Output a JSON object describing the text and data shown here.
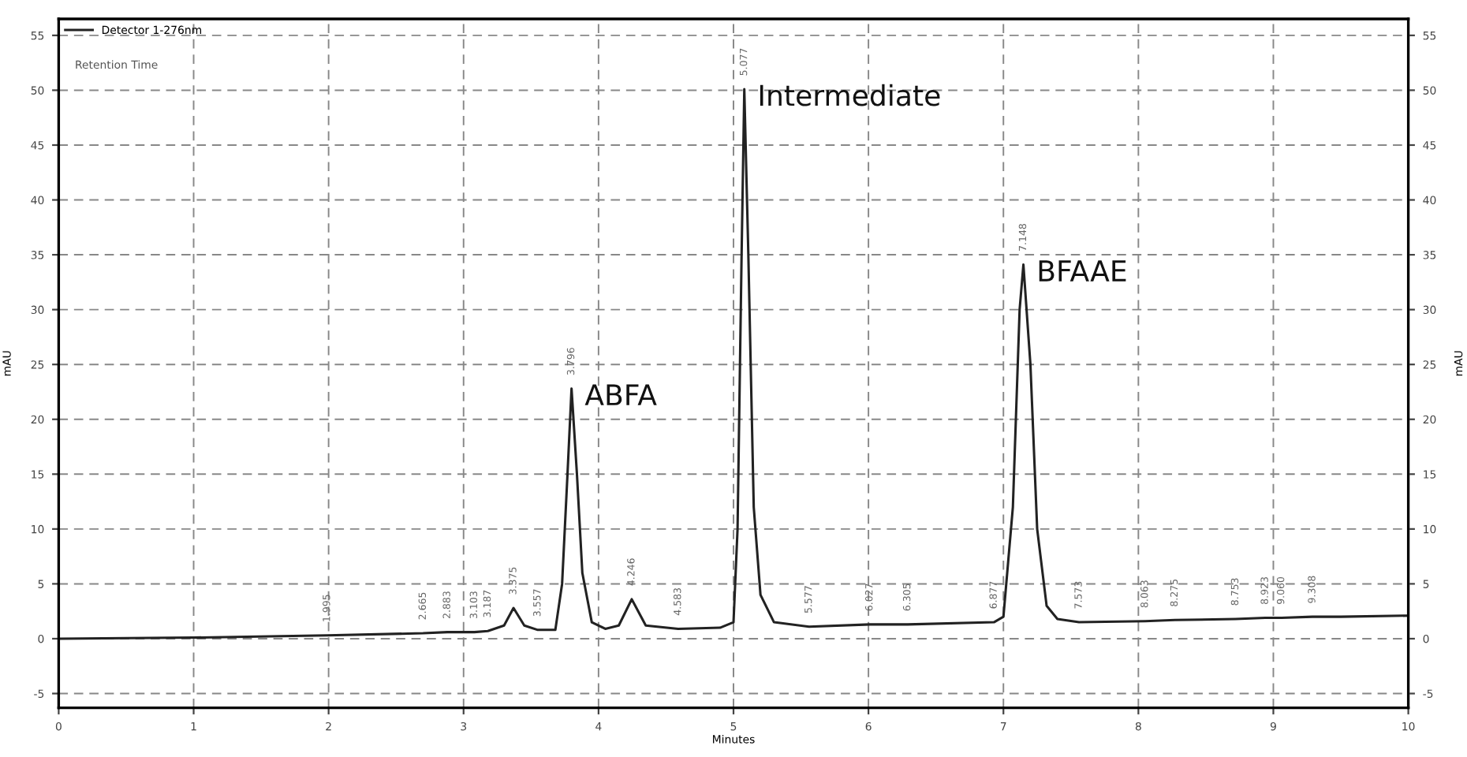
{
  "chart_data": {
    "type": "line",
    "xlabel": "Minutes",
    "ylabel": "mAU",
    "y2label": "mAU",
    "xlim": [
      0,
      10
    ],
    "xticks": [
      0,
      1,
      2,
      3,
      4,
      5,
      6,
      7,
      8,
      9,
      10
    ],
    "ylim": [
      -6.3,
      56.5
    ],
    "yticks": [
      -5,
      0,
      5,
      10,
      15,
      20,
      25,
      30,
      35,
      40,
      45,
      50,
      55
    ],
    "y2lim": [
      -6.3,
      56.5
    ],
    "y2ticks": [
      -5,
      0,
      5,
      10,
      15,
      20,
      25,
      30,
      35,
      40,
      45,
      50,
      55
    ],
    "grid": true,
    "legend": "top left",
    "line_style": "solid",
    "marker": "none",
    "series": [
      {
        "name": "Detector 1-276nm",
        "color": "#222222",
        "x": [
          0,
          1,
          1.99,
          2.7,
          2.88,
          3.08,
          3.18,
          3.3,
          3.37,
          3.45,
          3.55,
          3.68,
          3.73,
          3.77,
          3.8,
          3.84,
          3.88,
          3.95,
          4.05,
          4.15,
          4.246,
          4.35,
          4.59,
          4.9,
          5.0,
          5.03,
          5.06,
          5.08,
          5.11,
          5.15,
          5.2,
          5.3,
          5.56,
          6.01,
          6.29,
          6.93,
          7.0,
          7.07,
          7.12,
          7.148,
          7.2,
          7.25,
          7.32,
          7.4,
          7.56,
          8.05,
          8.27,
          8.72,
          8.94,
          9.06,
          9.29,
          9.5,
          10
        ],
        "values": [
          0.0,
          0.1,
          0.3,
          0.5,
          0.6,
          0.6,
          0.7,
          1.2,
          2.8,
          1.2,
          0.8,
          0.8,
          5,
          15,
          22.8,
          15,
          6,
          1.5,
          0.9,
          1.2,
          3.6,
          1.2,
          0.9,
          1.0,
          1.5,
          10,
          35,
          50.1,
          35,
          12,
          4,
          1.5,
          1.1,
          1.3,
          1.3,
          1.5,
          2,
          12,
          30,
          34.1,
          25,
          10,
          3,
          1.8,
          1.5,
          1.6,
          1.7,
          1.8,
          1.9,
          1.9,
          2.0,
          2.0,
          2.1
        ]
      }
    ],
    "annotations": [
      {
        "text": "ABFA",
        "x": 3.8,
        "y": 22.8
      },
      {
        "text": "Intermediate",
        "x": 5.08,
        "y": 50.1
      },
      {
        "text": "BFAAE",
        "x": 7.148,
        "y": 34.1
      },
      "Retention Time",
      {
        "text": "1.995",
        "x": 1.99,
        "y": 0.3
      },
      {
        "text": "2.665",
        "x": 2.7,
        "y": 0.5
      },
      {
        "text": "2.883",
        "x": 2.88,
        "y": 0.6
      },
      {
        "text": "3.103",
        "x": 3.08,
        "y": 0.6
      },
      {
        "text": "3.187",
        "x": 3.18,
        "y": 0.7
      },
      {
        "text": "3.375",
        "x": 3.37,
        "y": 2.8
      },
      {
        "text": "3.557",
        "x": 3.55,
        "y": 0.8
      },
      {
        "text": "3.796",
        "x": 3.8,
        "y": 22.8
      },
      {
        "text": "4.246",
        "x": 4.246,
        "y": 3.6
      },
      {
        "text": "4.583",
        "x": 4.59,
        "y": 0.9
      },
      {
        "text": "5.077",
        "x": 5.08,
        "y": 50.1
      },
      {
        "text": "5.577",
        "x": 5.56,
        "y": 1.1
      },
      {
        "text": "6.027",
        "x": 6.01,
        "y": 1.3
      },
      {
        "text": "6.305",
        "x": 6.29,
        "y": 1.3
      },
      {
        "text": "6.877",
        "x": 6.93,
        "y": 1.5
      },
      {
        "text": "7.148",
        "x": 7.148,
        "y": 34.1
      },
      {
        "text": "7.573",
        "x": 7.56,
        "y": 1.5
      },
      {
        "text": "8.063",
        "x": 8.05,
        "y": 1.6
      },
      {
        "text": "8.275",
        "x": 8.27,
        "y": 1.7
      },
      {
        "text": "8.753",
        "x": 8.72,
        "y": 1.8
      },
      {
        "text": "8.923",
        "x": 8.94,
        "y": 1.9
      },
      {
        "text": "9.060",
        "x": 9.06,
        "y": 1.9
      },
      {
        "text": "9.308",
        "x": 9.29,
        "y": 2.0
      }
    ]
  }
}
